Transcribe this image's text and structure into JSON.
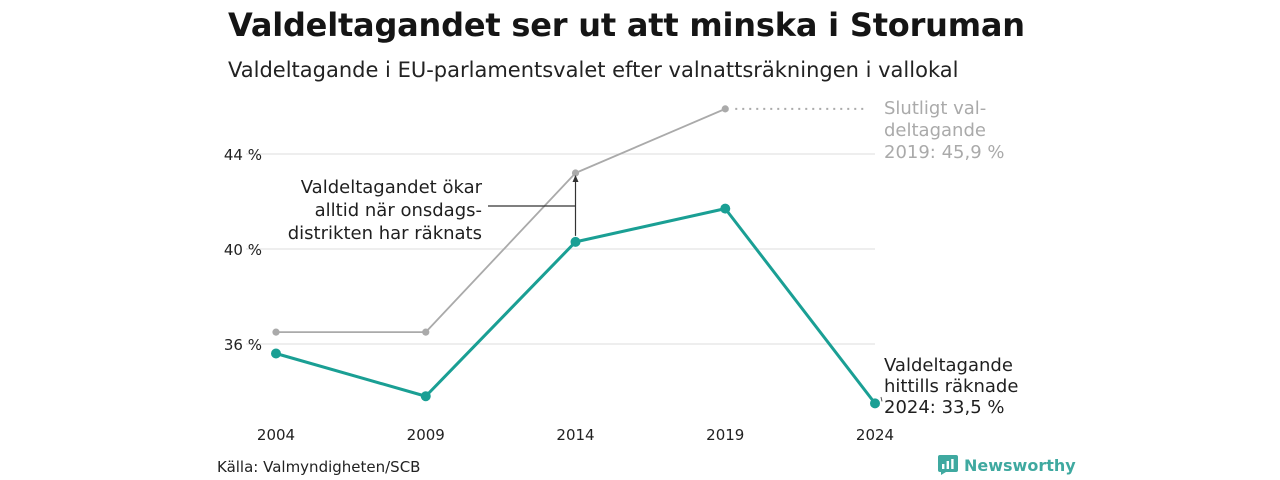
{
  "title": "Valdeltagandet ser ut att minska i Storuman",
  "subtitle": "Valdeltagande i EU-parlamentsvalet efter valnattsräkningen i vallokal",
  "source": "Källa: Valmyndigheten/SCB",
  "brand": {
    "name": "Newsworthy",
    "icon": "newsworthy-logo-icon",
    "color": "#3fa9a0"
  },
  "chart_data": {
    "type": "line",
    "x": [
      2004,
      2009,
      2014,
      2019,
      2024
    ],
    "ylim": [
      32.5,
      46.5
    ],
    "yticks": [
      36,
      40,
      44
    ],
    "ytick_labels": [
      "36 %",
      "40 %",
      "44 %"
    ],
    "xtick_labels": [
      "2004",
      "2009",
      "2014",
      "2019",
      "2024"
    ],
    "grid": true,
    "series": [
      {
        "key": "final",
        "values": [
          36.5,
          36.5,
          43.2,
          45.9,
          null
        ],
        "color": "#aaaaaa"
      },
      {
        "key": "election_night",
        "values": [
          35.6,
          33.8,
          40.3,
          41.7,
          33.5
        ],
        "color": "#1a9f94"
      }
    ],
    "annotations": {
      "final_label": [
        "Slutligt val-",
        "deltagande",
        "2019: 45,9 %"
      ],
      "current_label": [
        "Valdeltagande",
        "hittills räknade",
        "2024: 33,5 %"
      ],
      "gap_label": [
        "Valdeltagandet ökar",
        "alltid när onsdags-",
        "distrikten har räknats"
      ]
    }
  }
}
